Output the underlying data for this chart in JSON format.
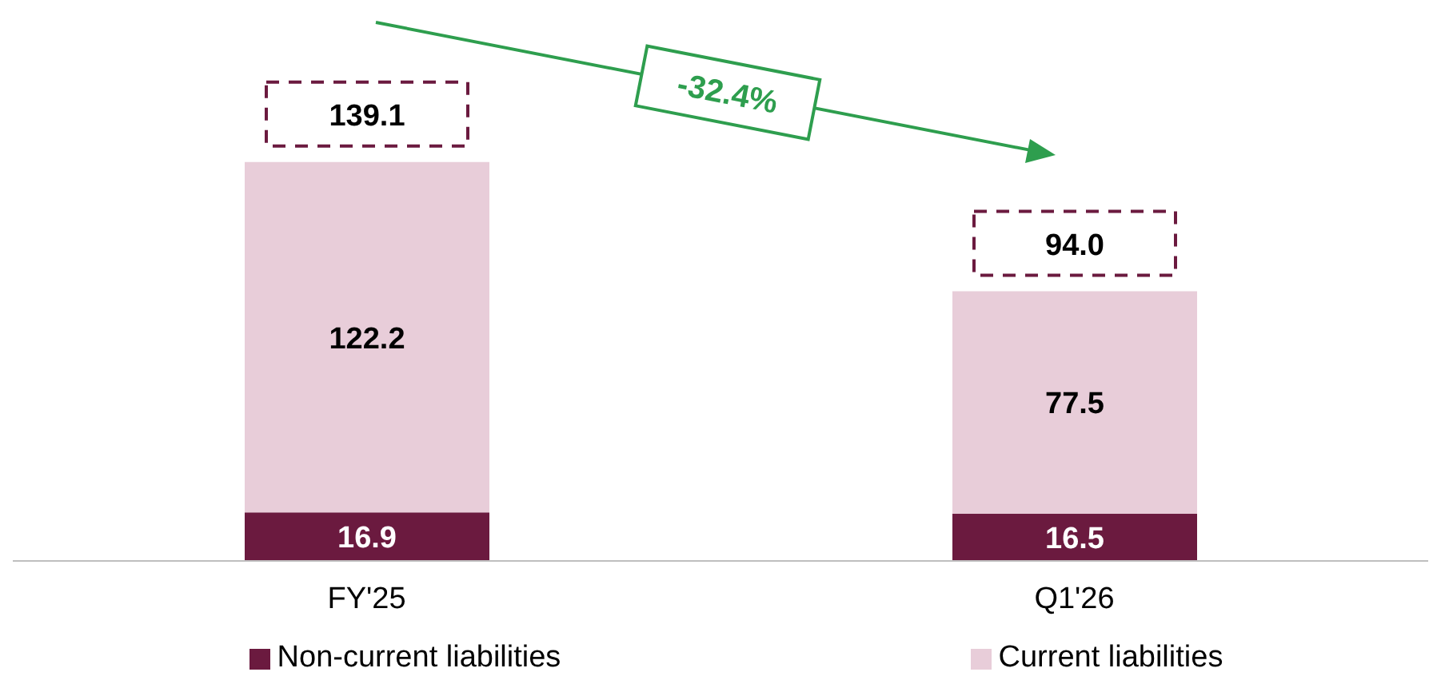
{
  "chart_data": {
    "type": "bar",
    "stacked": true,
    "categories": [
      "FY'25",
      "Q1'26"
    ],
    "series": [
      {
        "name": "Non-current liabilities",
        "color": "#6b1a3f",
        "values": [
          16.9,
          16.5
        ]
      },
      {
        "name": "Current liabilities",
        "color": "#e8cdd9",
        "values": [
          122.2,
          77.5
        ]
      }
    ],
    "totals": [
      "139.1",
      "94.0"
    ],
    "data_labels": true,
    "legend": "bottom",
    "annotations": [
      "-32.4%"
    ]
  }
}
